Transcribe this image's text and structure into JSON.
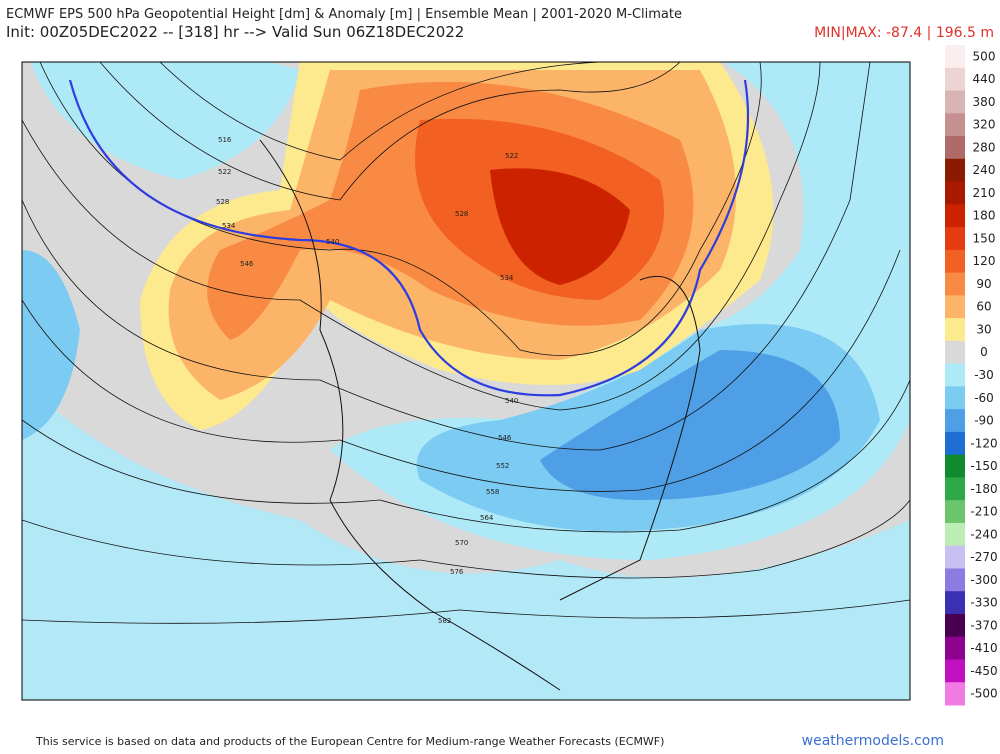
{
  "header": {
    "title": "ECMWF EPS 500 hPa Geopotential Height [dm] & Anomaly [m] | Ensemble Mean | 2001-2020 M-Climate",
    "init": "Init: 00Z05DEC2022 -- [318] hr --> Valid Sun 06Z18DEC2022",
    "minmax": "MIN|MAX: -87.4 | 196.5 m"
  },
  "contour_labels": [
    "516",
    "522",
    "528",
    "534",
    "546",
    "540",
    "534",
    "528",
    "522",
    "540",
    "546",
    "552",
    "558",
    "564",
    "570",
    "576",
    "582"
  ],
  "colorbar": {
    "labels": [
      500,
      440,
      380,
      320,
      280,
      240,
      210,
      180,
      150,
      120,
      90,
      60,
      30,
      0,
      -30,
      -60,
      -90,
      -120,
      -150,
      -180,
      -210,
      -240,
      -270,
      -300,
      -330,
      -370,
      -410,
      -450,
      -500
    ],
    "colors": [
      "#fbeeee",
      "#ecd4d4",
      "#d9b4b4",
      "#c69090",
      "#b06a6a",
      "#8a1a00",
      "#aa1800",
      "#cc2200",
      "#e63a10",
      "#f26022",
      "#f98a44",
      "#fcb468",
      "#fde98e",
      "#d9d9d9",
      "#aee9f8",
      "#7ccbf2",
      "#4e9fe6",
      "#1f6ed6",
      "#108a2e",
      "#2fa848",
      "#6cc46c",
      "#bdecb4",
      "#c8c0f2",
      "#8c7ce2",
      "#3a30b4",
      "#4a0050",
      "#8e008e",
      "#c010c0",
      "#f27ae4"
    ]
  },
  "footer": {
    "credit": "This service is based on data and products of the European Centre for Medium-range Weather Forecasts (ECMWF)",
    "site": "weathermodels.com"
  }
}
